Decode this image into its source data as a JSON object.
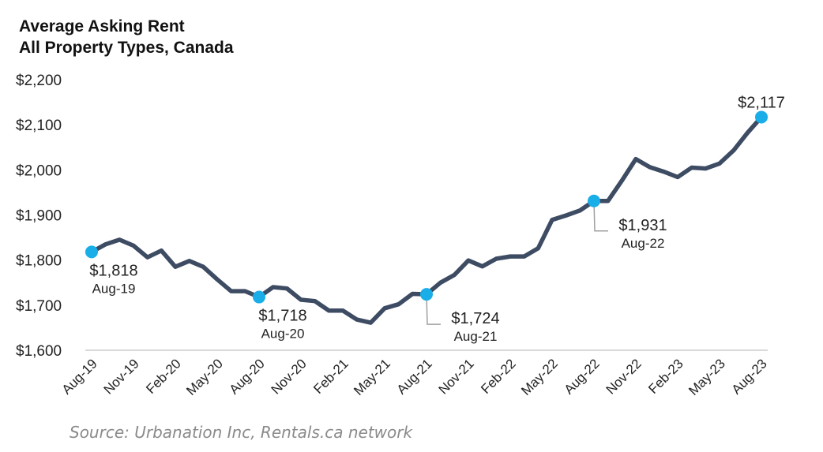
{
  "chart_data": {
    "type": "line",
    "title": "Average Asking Rent",
    "subtitle": "All Property Types, Canada",
    "xlabel": "",
    "ylabel": "",
    "ylim": [
      1600,
      2200
    ],
    "y_ticks": [
      "$1,600",
      "$1,700",
      "$1,800",
      "$1,900",
      "$2,000",
      "$2,100",
      "$2,200"
    ],
    "y_tick_values": [
      1600,
      1700,
      1800,
      1900,
      2000,
      2100,
      2200
    ],
    "x_tick_labels": [
      "Aug-19",
      "Nov-19",
      "Feb-20",
      "May-20",
      "Aug-20",
      "Nov-20",
      "Feb-21",
      "May-21",
      "Aug-21",
      "Nov-21",
      "Feb-22",
      "May-22",
      "Aug-22",
      "Nov-22",
      "Feb-23",
      "May-23",
      "Aug-23"
    ],
    "x_tick_step_months": 3,
    "grid": false,
    "series": [
      {
        "name": "Average Asking Rent",
        "color": "#3d4b63",
        "start": "Aug-19",
        "frequency": "monthly",
        "values": [
          1818,
          1835,
          1845,
          1832,
          1806,
          1821,
          1785,
          1798,
          1785,
          1757,
          1731,
          1731,
          1718,
          1740,
          1737,
          1712,
          1709,
          1688,
          1688,
          1668,
          1661,
          1693,
          1702,
          1725,
          1724,
          1750,
          1767,
          1799,
          1786,
          1803,
          1808,
          1808,
          1826,
          1889,
          1899,
          1910,
          1931,
          1931,
          1976,
          2024,
          2006,
          1996,
          1984,
          2005,
          2003,
          2014,
          2043,
          2082,
          2117
        ]
      }
    ],
    "marker_color": "#19aee8",
    "annotations": [
      {
        "index": 0,
        "value_label": "$1,818",
        "date_label": "Aug-19",
        "placement": "below"
      },
      {
        "index": 12,
        "value_label": "$1,718",
        "date_label": "Aug-20",
        "placement": "below"
      },
      {
        "index": 24,
        "value_label": "$1,724",
        "date_label": "Aug-21",
        "placement": "below-right-leader"
      },
      {
        "index": 36,
        "value_label": "$1,931",
        "date_label": "Aug-22",
        "placement": "below-right-leader"
      },
      {
        "index": 48,
        "value_label": "$2,117",
        "date_label": "",
        "placement": "above"
      }
    ]
  },
  "source": "Source: Urbanation Inc, Rentals.ca network"
}
